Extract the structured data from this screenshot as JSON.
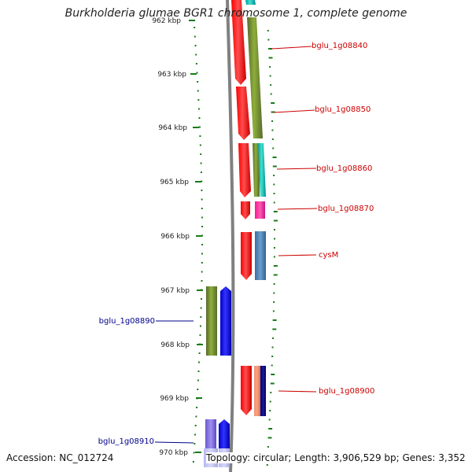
{
  "title": "Burkholderia glumae BGR1 chromosome 1, complete genome",
  "footer": {
    "accession": "Accession: NC_012724",
    "summary": "Topology: circular; Length: 3,906,529 bp; Genes: 3,352"
  },
  "ticks": [
    {
      "label": "962 kbp"
    },
    {
      "label": "963 kbp"
    },
    {
      "label": "964 kbp"
    },
    {
      "label": "965 kbp"
    },
    {
      "label": "966 kbp"
    },
    {
      "label": "967 kbp"
    },
    {
      "label": "968 kbp"
    },
    {
      "label": "969 kbp"
    },
    {
      "label": "970 kbp"
    }
  ],
  "gene_labels": {
    "g1": "bglu_1g08840",
    "g2": "bglu_1g08850",
    "g3": "bglu_1g08860",
    "g4": "bglu_1g08870",
    "g5": "cysM",
    "g6": "bglu_1g08890",
    "g7": "bglu_1g08900",
    "g8": "bglu_1g08910"
  },
  "colors": {
    "forward_label": "#cc0000",
    "reverse_label": "#00008b",
    "tick": "#1a7a1a",
    "backbone": "#808080",
    "cds_red": "#ff0000",
    "olive": "#6b8e23",
    "cyan": "#20b2aa",
    "pink": "#ff1493",
    "steelblue": "#4682b4",
    "blue": "#0000ff",
    "salmon": "#fa8072",
    "navy": "#000080",
    "lavender": "#7b68ee"
  }
}
